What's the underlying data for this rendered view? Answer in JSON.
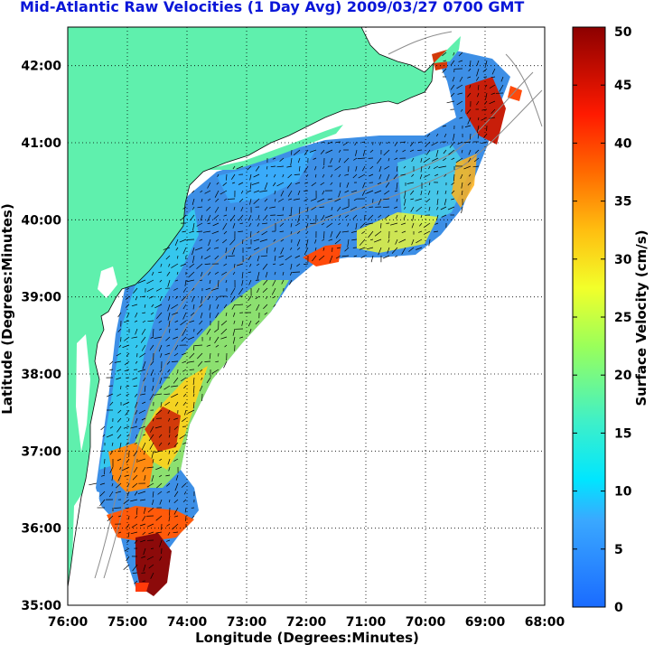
{
  "title": "Mid-Atlantic Raw Velocities (1 Day Avg) 2009/03/27 0700 GMT",
  "map": {
    "xlabel": "Longitude (Degrees:Minutes)",
    "ylabel": "Latitude (Degrees:Minutes)",
    "x_ticks": [
      "76:00",
      "75:00",
      "74:00",
      "73:00",
      "72:00",
      "71:00",
      "70:00",
      "69:00",
      "68:00"
    ],
    "y_ticks": [
      "42:00",
      "41:00",
      "40:00",
      "39:00",
      "38:00",
      "37:00",
      "36:00",
      "35:00"
    ],
    "lon_range": [
      -76,
      -68
    ],
    "lat_range": [
      35,
      42.5
    ],
    "land_color": "#5ff0ad",
    "grid": "dotted"
  },
  "colorbar": {
    "label": "Surface Velocity (cm/s)",
    "ticks": [
      "50",
      "45",
      "40",
      "35",
      "30",
      "25",
      "20",
      "15",
      "10",
      "5",
      "0"
    ],
    "range": [
      0,
      50
    ]
  }
}
